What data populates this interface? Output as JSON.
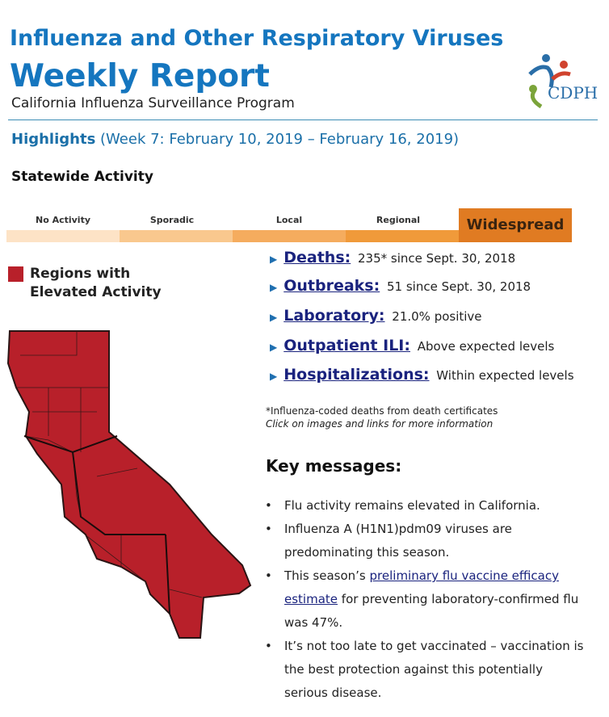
{
  "header": {
    "title": "Influenza and Other Respiratory Viruses",
    "report": "Weekly Report",
    "subtitle": "California Influenza Surveillance Program",
    "logo": "CDPH"
  },
  "highlights": {
    "label": "Highlights",
    "week": "(Week 7: February 10, 2019 – February 16, 2019)"
  },
  "activity": {
    "title": "Statewide Activity",
    "levels": [
      "No Activity",
      "Sporadic",
      "Local",
      "Regional",
      "Widespread"
    ]
  },
  "legend": {
    "label": "Regions with Elevated Activity"
  },
  "indicators": [
    {
      "link": "Deaths:",
      "text": "235* since Sept. 30, 2018"
    },
    {
      "link": "Outbreaks:",
      "text": "51 since Sept. 30, 2018"
    },
    {
      "link": "Laboratory:",
      "text": "21.0% positive"
    },
    {
      "link": "Outpatient ILI:",
      "text": "Above expected levels"
    },
    {
      "link": "Hospitalizations:",
      "text": "Within expected levels"
    }
  ],
  "footnote": "*Influenza-coded deaths from death certificates",
  "note": "Click on images and links for more information",
  "key_messages": {
    "title": "Key messages:",
    "items": [
      {
        "text": "Flu activity remains elevated in California."
      },
      {
        "text": "Influenza A (H1N1)pdm09 viruses are predominating this season."
      },
      {
        "text": "This season’s ",
        "link": "preliminary flu vaccine efficacy estimate",
        "after": " for preventing laboratory-confirmed flu was 47%."
      },
      {
        "text": "It’s not too late to get vaccinated – vaccination is the best protection against this potentially serious disease."
      }
    ]
  }
}
